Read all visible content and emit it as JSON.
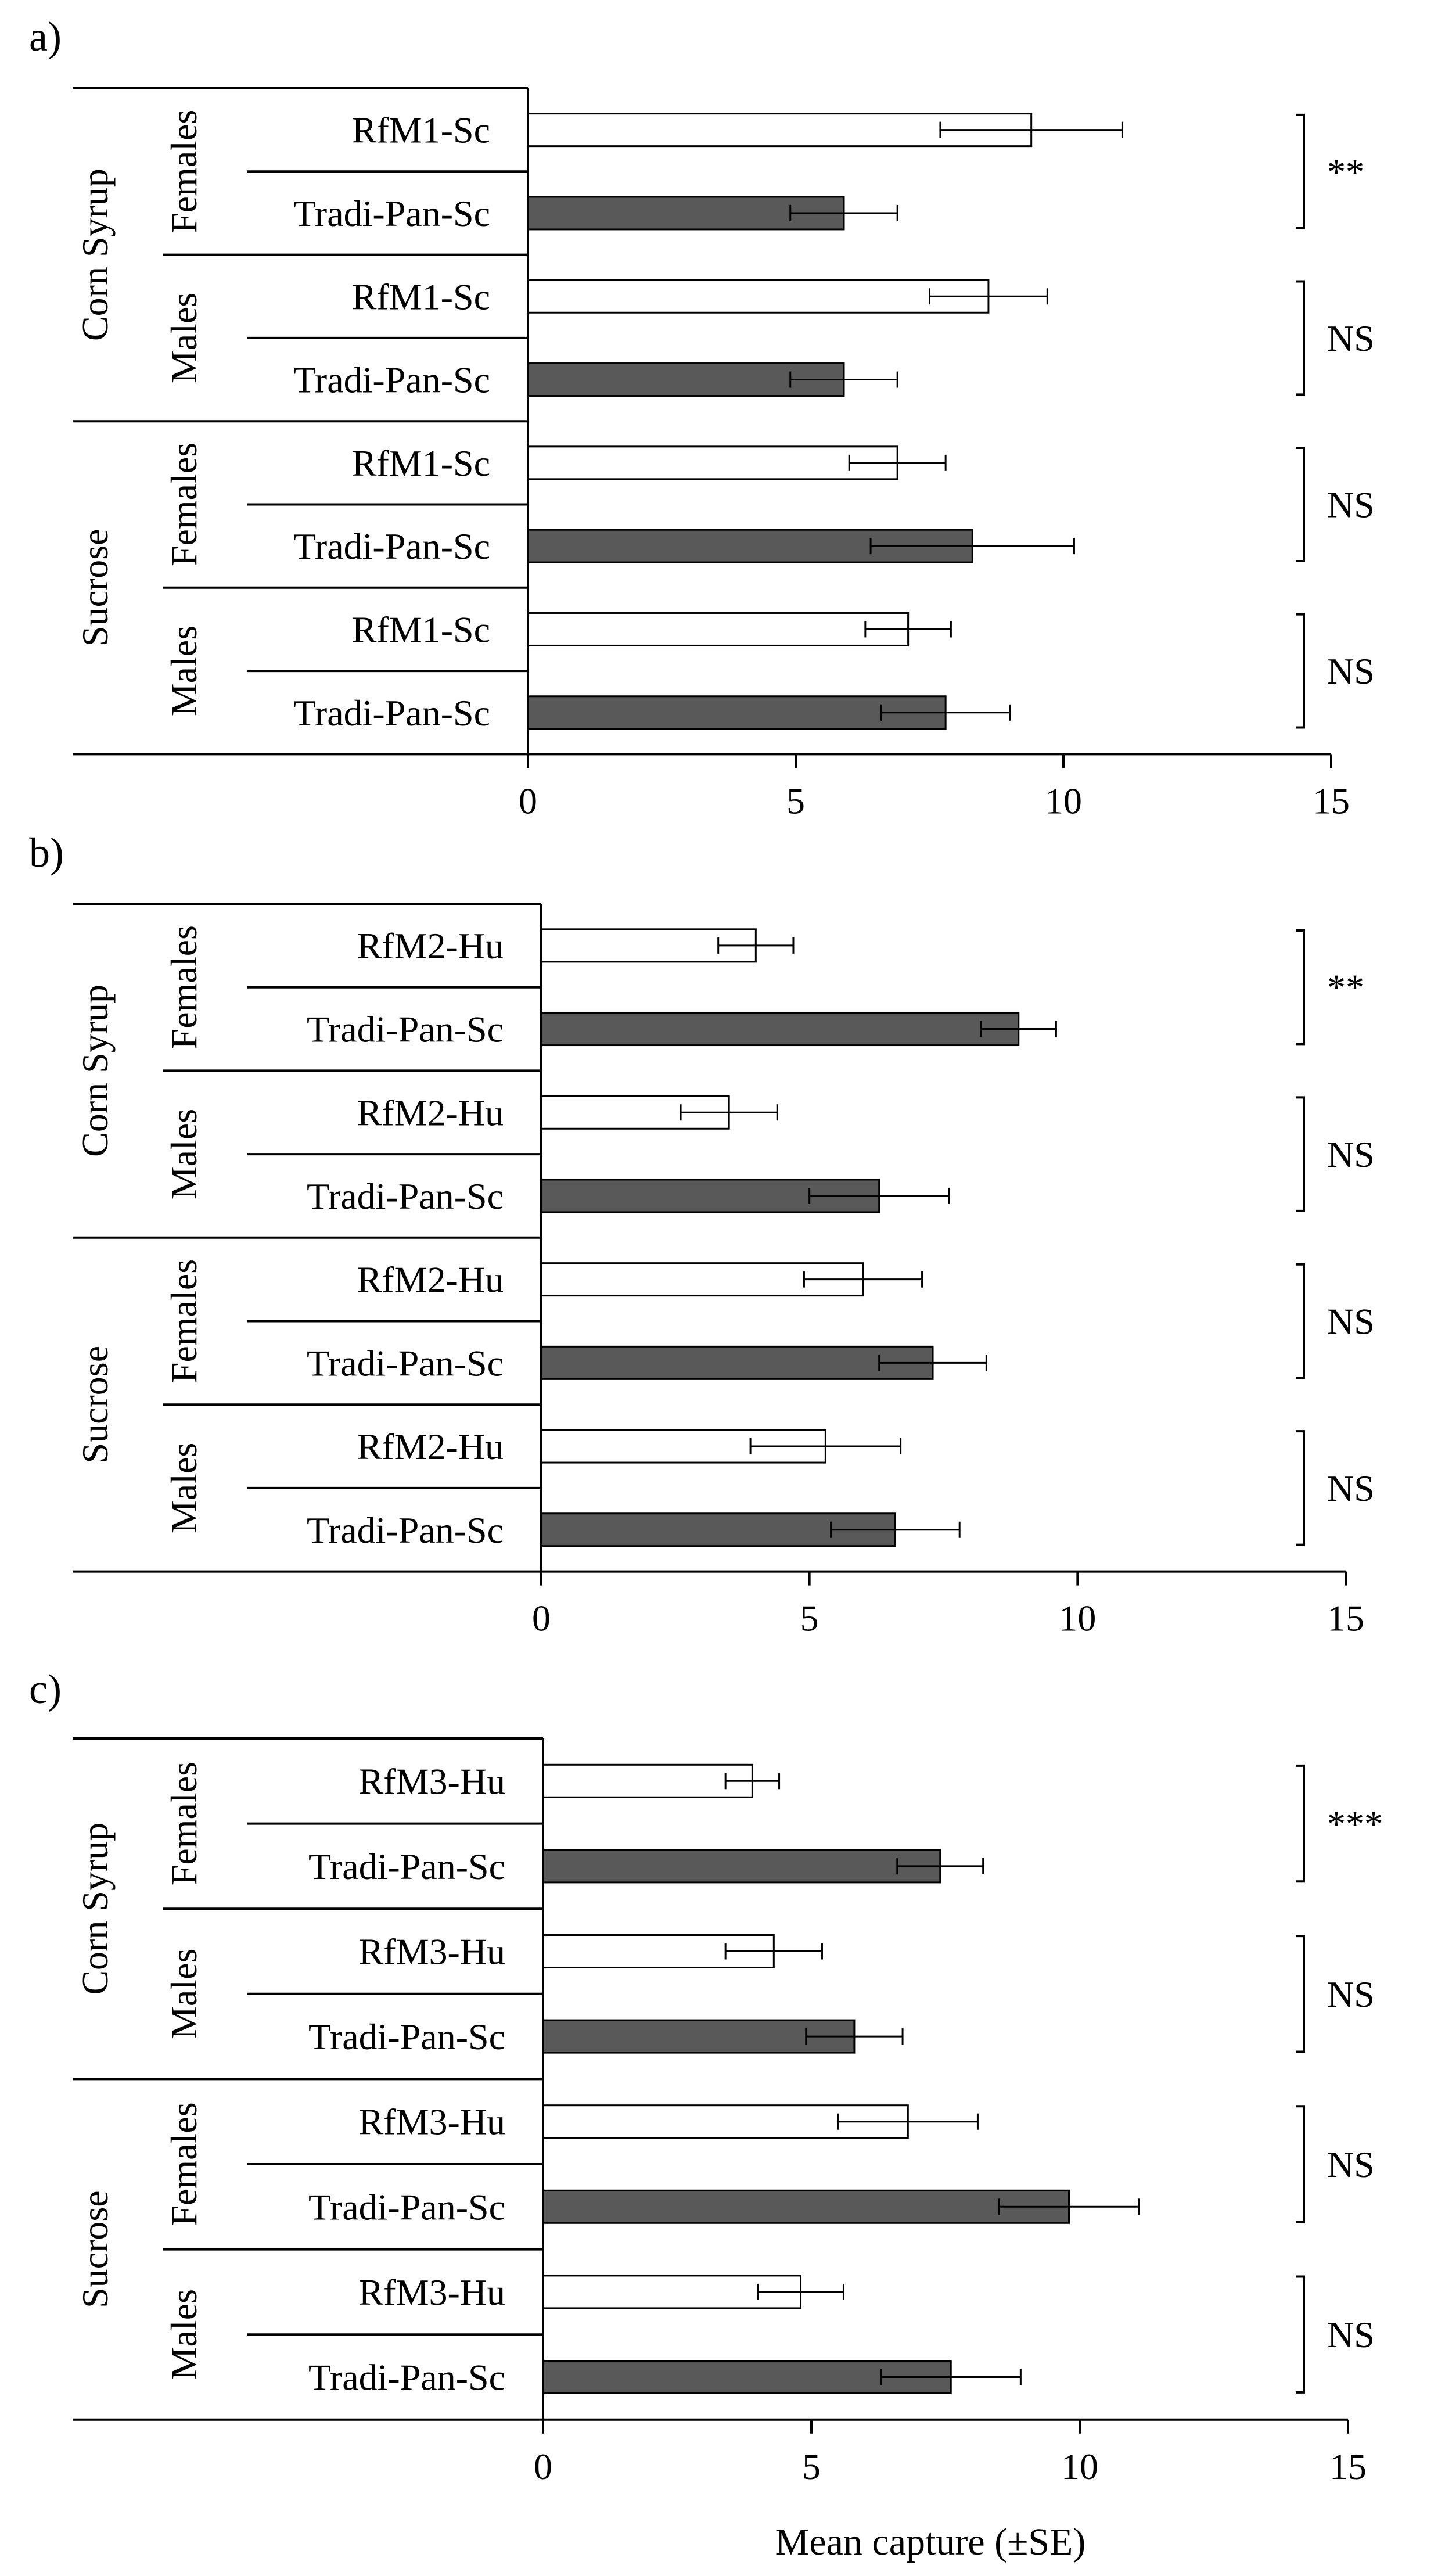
{
  "colors": {
    "rfm_fill": "#ffffff",
    "tradi_fill": "#595959",
    "stroke": "#000000"
  },
  "xlabel": "Mean capture (±SE)",
  "chart_data": [
    {
      "type": "bar",
      "panel_label": "a)",
      "xlim": [
        0,
        15
      ],
      "xticks": [
        "0",
        "5",
        "10",
        "15"
      ],
      "groups": [
        {
          "bait": "Corn Syrup",
          "sexes": [
            {
              "sex": "Females",
              "sig": "**",
              "bars": [
                {
                  "label": "RfM1-Sc",
                  "value": 9.4,
                  "se": 1.7
                },
                {
                  "label": "Tradi-Pan-Sc",
                  "value": 5.9,
                  "se": 1.0
                }
              ]
            },
            {
              "sex": "Males",
              "sig": "NS",
              "bars": [
                {
                  "label": "RfM1-Sc",
                  "value": 8.6,
                  "se": 1.1
                },
                {
                  "label": "Tradi-Pan-Sc",
                  "value": 5.9,
                  "se": 1.0
                }
              ]
            }
          ]
        },
        {
          "bait": "Sucrose",
          "sexes": [
            {
              "sex": "Females",
              "sig": "NS",
              "bars": [
                {
                  "label": "RfM1-Sc",
                  "value": 6.9,
                  "se": 0.9
                },
                {
                  "label": "Tradi-Pan-Sc",
                  "value": 8.3,
                  "se": 1.9
                }
              ]
            },
            {
              "sex": "Males",
              "sig": "NS",
              "bars": [
                {
                  "label": "RfM1-Sc",
                  "value": 7.1,
                  "se": 0.8
                },
                {
                  "label": "Tradi-Pan-Sc",
                  "value": 7.8,
                  "se": 1.2
                }
              ]
            }
          ]
        }
      ]
    },
    {
      "type": "bar",
      "panel_label": "b)",
      "xlim": [
        0,
        15
      ],
      "xticks": [
        "0",
        "5",
        "10",
        "15"
      ],
      "groups": [
        {
          "bait": "Corn Syrup",
          "sexes": [
            {
              "sex": "Females",
              "sig": "**",
              "bars": [
                {
                  "label": "RfM2-Hu",
                  "value": 4.0,
                  "se": 0.7
                },
                {
                  "label": "Tradi-Pan-Sc",
                  "value": 8.9,
                  "se": 0.7
                }
              ]
            },
            {
              "sex": "Males",
              "sig": "NS",
              "bars": [
                {
                  "label": "RfM2-Hu",
                  "value": 3.5,
                  "se": 0.9
                },
                {
                  "label": "Tradi-Pan-Sc",
                  "value": 6.3,
                  "se": 1.3
                }
              ]
            }
          ]
        },
        {
          "bait": "Sucrose",
          "sexes": [
            {
              "sex": "Females",
              "sig": "NS",
              "bars": [
                {
                  "label": "RfM2-Hu",
                  "value": 6.0,
                  "se": 1.1
                },
                {
                  "label": "Tradi-Pan-Sc",
                  "value": 7.3,
                  "se": 1.0
                }
              ]
            },
            {
              "sex": "Males",
              "sig": "NS",
              "bars": [
                {
                  "label": "RfM2-Hu",
                  "value": 5.3,
                  "se": 1.4
                },
                {
                  "label": "Tradi-Pan-Sc",
                  "value": 6.6,
                  "se": 1.2
                }
              ]
            }
          ]
        }
      ]
    },
    {
      "type": "bar",
      "panel_label": "c)",
      "xlim": [
        0,
        15
      ],
      "xticks": [
        "0",
        "5",
        "10",
        "15"
      ],
      "groups": [
        {
          "bait": "Corn Syrup",
          "sexes": [
            {
              "sex": "Females",
              "sig": "***",
              "bars": [
                {
                  "label": "RfM3-Hu",
                  "value": 3.9,
                  "se": 0.5
                },
                {
                  "label": "Tradi-Pan-Sc",
                  "value": 7.4,
                  "se": 0.8
                }
              ]
            },
            {
              "sex": "Males",
              "sig": "NS",
              "bars": [
                {
                  "label": "RfM3-Hu",
                  "value": 4.3,
                  "se": 0.9
                },
                {
                  "label": "Tradi-Pan-Sc",
                  "value": 5.8,
                  "se": 0.9
                }
              ]
            }
          ]
        },
        {
          "bait": "Sucrose",
          "sexes": [
            {
              "sex": "Females",
              "sig": "NS",
              "bars": [
                {
                  "label": "RfM3-Hu",
                  "value": 6.8,
                  "se": 1.3
                },
                {
                  "label": "Tradi-Pan-Sc",
                  "value": 9.8,
                  "se": 1.3
                }
              ]
            },
            {
              "sex": "Males",
              "sig": "NS",
              "bars": [
                {
                  "label": "RfM3-Hu",
                  "value": 4.8,
                  "se": 0.8
                },
                {
                  "label": "Tradi-Pan-Sc",
                  "value": 7.6,
                  "se": 1.3
                }
              ]
            }
          ]
        }
      ]
    }
  ]
}
